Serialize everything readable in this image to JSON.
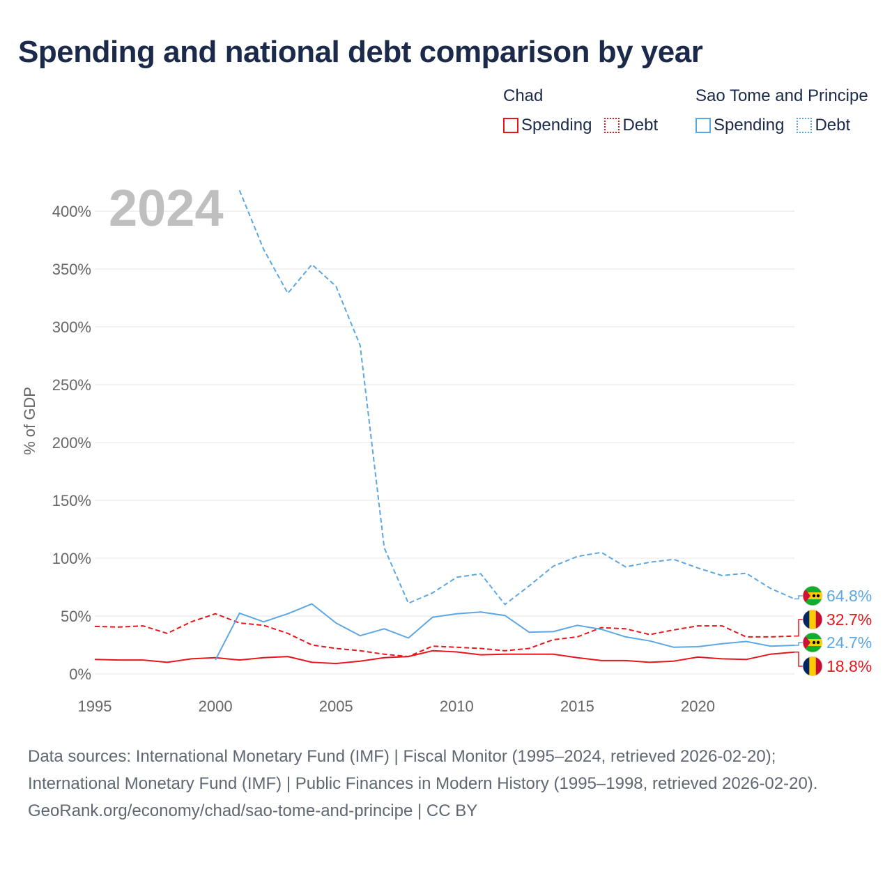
{
  "title": "Spending and national debt comparison by year",
  "colors": {
    "chad": "#e8161c",
    "stp": "#5ca7e3",
    "grid": "#e6e6e6",
    "axis_text": "#666666",
    "year_watermark": "#bfbfbf"
  },
  "legend": {
    "groups": [
      {
        "country": "Chad",
        "color": "#e8161c",
        "items": [
          {
            "label": "Spending",
            "style": "solid"
          },
          {
            "label": "Debt",
            "style": "dotted"
          }
        ]
      },
      {
        "country": "Sao Tome and Principe",
        "color": "#5ca7e3",
        "items": [
          {
            "label": "Spending",
            "style": "solid"
          },
          {
            "label": "Debt",
            "style": "dotted"
          }
        ]
      }
    ]
  },
  "year_label": "2024",
  "end_labels": [
    {
      "text": "64.8%",
      "color": "#5ca7e3",
      "flag": "sao-tome-flag-icon",
      "value": 64.8
    },
    {
      "text": "32.7%",
      "color": "#e8161c",
      "flag": "chad-flag-icon",
      "value": 32.7
    },
    {
      "text": "24.7%",
      "color": "#5ca7e3",
      "flag": "sao-tome-flag-icon",
      "value": 24.7
    },
    {
      "text": "18.8%",
      "color": "#e8161c",
      "flag": "chad-flag-icon",
      "value": 18.8
    }
  ],
  "footer": {
    "sources": "Data sources: International Monetary Fund (IMF) | Fiscal Monitor (1995–2024, retrieved 2026-02-20); International Monetary Fund (IMF) | Public Finances in Modern History (1995–1998, retrieved 2026-02-20).",
    "attribution": "GeoRank.org/economy/chad/sao-tome-and-principe | CC BY"
  },
  "chart_data": {
    "type": "line",
    "title": "Spending and national debt comparison by year",
    "xlabel": "",
    "ylabel": "% of GDP",
    "xlim": [
      1995,
      2024
    ],
    "ylim": [
      0,
      400
    ],
    "x_ticks": [
      1995,
      2000,
      2005,
      2010,
      2015,
      2020
    ],
    "x_tick_labels": [
      "1995",
      "2000",
      "2005",
      "2010",
      "2015",
      "2020"
    ],
    "y_ticks": [
      0,
      50,
      100,
      150,
      200,
      250,
      300,
      350,
      400
    ],
    "y_tick_labels": [
      "0%",
      "50%",
      "100%",
      "150%",
      "200%",
      "250%",
      "300%",
      "350%",
      "400%"
    ],
    "grid": true,
    "series": [
      {
        "name": "Chad Spending",
        "country": "Chad",
        "metric": "Spending",
        "dash": "solid",
        "color": "#e8161c",
        "x": [
          1995,
          1996,
          1997,
          1998,
          1999,
          2000,
          2001,
          2002,
          2003,
          2004,
          2005,
          2006,
          2007,
          2008,
          2009,
          2010,
          2011,
          2012,
          2013,
          2014,
          2015,
          2016,
          2017,
          2018,
          2019,
          2020,
          2021,
          2022,
          2023,
          2024
        ],
        "y": [
          12.5,
          12,
          12,
          10,
          13,
          14,
          12,
          14,
          15,
          10,
          9,
          11,
          14,
          15,
          20,
          19,
          16.5,
          17,
          17,
          17,
          14,
          11.5,
          11.5,
          10,
          11,
          14.5,
          13,
          12.5,
          17,
          18.8
        ]
      },
      {
        "name": "Chad Debt",
        "country": "Chad",
        "metric": "Debt",
        "dash": "dashed",
        "color": "#e8161c",
        "x": [
          1995,
          1996,
          1997,
          1998,
          1999,
          2000,
          2001,
          2002,
          2003,
          2004,
          2005,
          2006,
          2007,
          2008,
          2009,
          2010,
          2011,
          2012,
          2013,
          2014,
          2015,
          2016,
          2017,
          2018,
          2019,
          2020,
          2021,
          2022,
          2023,
          2024
        ],
        "y": [
          41,
          40.5,
          41.5,
          35,
          45,
          52,
          44,
          42,
          35,
          25,
          22,
          20,
          17,
          15,
          24,
          23,
          22,
          20,
          22,
          29.5,
          32,
          40,
          39,
          34,
          38,
          41.5,
          41.5,
          32,
          32,
          32.7
        ]
      },
      {
        "name": "Sao Tome and Principe Spending",
        "country": "Sao Tome and Principe",
        "metric": "Spending",
        "dash": "solid",
        "color": "#5ca7e3",
        "x": [
          2000,
          2001,
          2002,
          2003,
          2004,
          2005,
          2006,
          2007,
          2008,
          2009,
          2010,
          2011,
          2012,
          2013,
          2014,
          2015,
          2016,
          2017,
          2018,
          2019,
          2020,
          2021,
          2022,
          2023,
          2024
        ],
        "y": [
          12,
          52.5,
          45,
          52,
          60.5,
          44,
          33,
          39,
          31,
          49,
          52,
          53.5,
          50.5,
          36,
          36.5,
          42,
          38.5,
          32,
          28.5,
          23,
          23.5,
          26,
          28,
          24,
          24.7
        ]
      },
      {
        "name": "Sao Tome and Principe Debt",
        "country": "Sao Tome and Principe",
        "metric": "Debt",
        "dash": "dashed",
        "color": "#5ca7e3",
        "x": [
          2001,
          2002,
          2003,
          2004,
          2005,
          2006,
          2007,
          2008,
          2009,
          2010,
          2011,
          2012,
          2013,
          2014,
          2015,
          2016,
          2017,
          2018,
          2019,
          2020,
          2021,
          2022,
          2023,
          2024
        ],
        "y": [
          418,
          367,
          329,
          354,
          335,
          284,
          109,
          61,
          70,
          83.5,
          86.5,
          60,
          76,
          93,
          101.5,
          105,
          92.5,
          96.5,
          99,
          91.5,
          85,
          87,
          74,
          64.8
        ]
      }
    ]
  }
}
